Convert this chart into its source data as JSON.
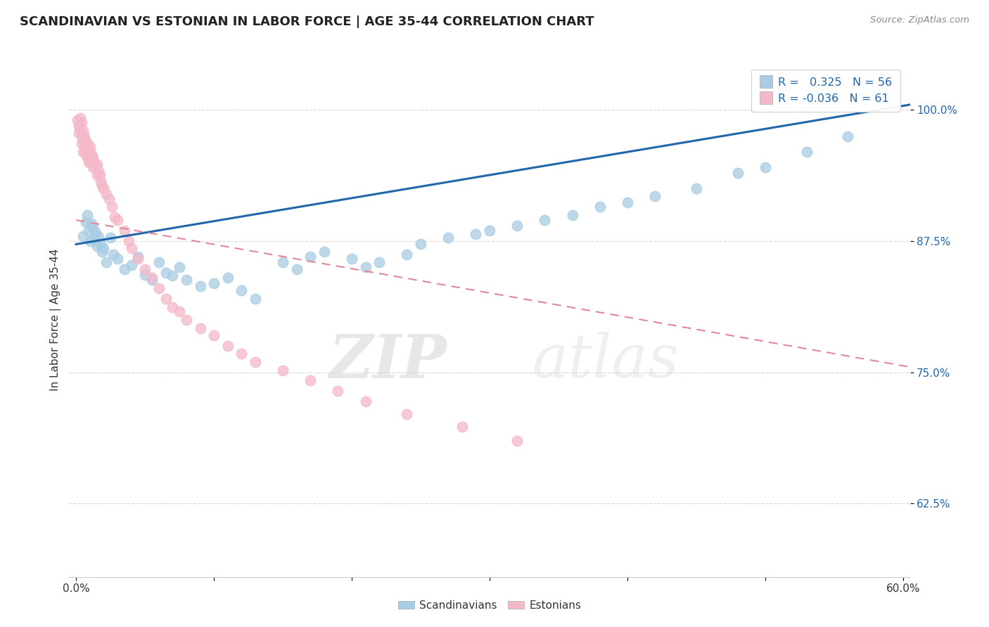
{
  "title": "SCANDINAVIAN VS ESTONIAN IN LABOR FORCE | AGE 35-44 CORRELATION CHART",
  "source": "Source: ZipAtlas.com",
  "ylabel": "In Labor Force | Age 35-44",
  "x_tick_labels": [
    "0.0%",
    "",
    "",
    "",
    "",
    "",
    "60.0%"
  ],
  "x_ticks": [
    0.0,
    0.1,
    0.2,
    0.3,
    0.4,
    0.5,
    0.6
  ],
  "y_tick_labels": [
    "62.5%",
    "75.0%",
    "87.5%",
    "100.0%"
  ],
  "y_ticks": [
    0.625,
    0.75,
    0.875,
    1.0
  ],
  "xlim": [
    -0.005,
    0.605
  ],
  "ylim": [
    0.555,
    1.045
  ],
  "legend_labels": [
    "Scandinavians",
    "Estonians"
  ],
  "r_scandinavian": 0.325,
  "n_scandinavian": 56,
  "r_estonian": -0.036,
  "n_estonian": 61,
  "blue_color": "#a8cce4",
  "pink_color": "#f4b8c8",
  "blue_line_color": "#2166ac",
  "pink_line_color": "#e08898",
  "watermark_zip": "ZIP",
  "watermark_atlas": "atlas",
  "blue_line_x0": 0.0,
  "blue_line_y0": 0.872,
  "blue_line_x1": 0.605,
  "blue_line_y1": 1.005,
  "pink_line_x0": 0.0,
  "pink_line_y0": 0.895,
  "pink_line_x1": 0.605,
  "pink_line_y1": 0.755,
  "blue_scatter_x": [
    0.005,
    0.007,
    0.008,
    0.009,
    0.01,
    0.011,
    0.012,
    0.013,
    0.014,
    0.015,
    0.016,
    0.018,
    0.019,
    0.02,
    0.022,
    0.025,
    0.027,
    0.03,
    0.035,
    0.04,
    0.045,
    0.05,
    0.055,
    0.06,
    0.065,
    0.07,
    0.075,
    0.08,
    0.09,
    0.1,
    0.11,
    0.12,
    0.13,
    0.15,
    0.16,
    0.17,
    0.18,
    0.2,
    0.21,
    0.22,
    0.24,
    0.25,
    0.27,
    0.29,
    0.3,
    0.32,
    0.34,
    0.36,
    0.38,
    0.4,
    0.42,
    0.45,
    0.48,
    0.5,
    0.53,
    0.56
  ],
  "blue_scatter_y": [
    0.88,
    0.893,
    0.9,
    0.885,
    0.875,
    0.892,
    0.888,
    0.876,
    0.883,
    0.87,
    0.879,
    0.872,
    0.865,
    0.868,
    0.855,
    0.878,
    0.862,
    0.858,
    0.848,
    0.852,
    0.86,
    0.843,
    0.838,
    0.855,
    0.845,
    0.842,
    0.85,
    0.838,
    0.832,
    0.835,
    0.84,
    0.828,
    0.82,
    0.855,
    0.848,
    0.86,
    0.865,
    0.858,
    0.85,
    0.855,
    0.862,
    0.872,
    0.878,
    0.882,
    0.885,
    0.89,
    0.895,
    0.9,
    0.908,
    0.912,
    0.918,
    0.925,
    0.94,
    0.945,
    0.96,
    0.975
  ],
  "pink_scatter_x": [
    0.001,
    0.002,
    0.002,
    0.003,
    0.003,
    0.004,
    0.004,
    0.004,
    0.005,
    0.005,
    0.005,
    0.006,
    0.006,
    0.007,
    0.007,
    0.008,
    0.008,
    0.009,
    0.009,
    0.01,
    0.01,
    0.011,
    0.012,
    0.012,
    0.013,
    0.014,
    0.015,
    0.015,
    0.016,
    0.017,
    0.018,
    0.019,
    0.02,
    0.022,
    0.024,
    0.026,
    0.028,
    0.03,
    0.035,
    0.038,
    0.04,
    0.045,
    0.05,
    0.055,
    0.06,
    0.065,
    0.07,
    0.075,
    0.08,
    0.09,
    0.1,
    0.11,
    0.12,
    0.13,
    0.15,
    0.17,
    0.19,
    0.21,
    0.24,
    0.28,
    0.32
  ],
  "pink_scatter_y": [
    0.99,
    0.985,
    0.978,
    0.992,
    0.982,
    0.975,
    0.988,
    0.968,
    0.98,
    0.972,
    0.96,
    0.975,
    0.965,
    0.97,
    0.958,
    0.968,
    0.955,
    0.963,
    0.95,
    0.965,
    0.952,
    0.958,
    0.955,
    0.945,
    0.95,
    0.945,
    0.948,
    0.938,
    0.942,
    0.938,
    0.932,
    0.928,
    0.925,
    0.92,
    0.915,
    0.908,
    0.898,
    0.895,
    0.885,
    0.875,
    0.868,
    0.858,
    0.848,
    0.84,
    0.83,
    0.82,
    0.812,
    0.808,
    0.8,
    0.792,
    0.785,
    0.775,
    0.768,
    0.76,
    0.752,
    0.742,
    0.732,
    0.722,
    0.71,
    0.698,
    0.685
  ]
}
